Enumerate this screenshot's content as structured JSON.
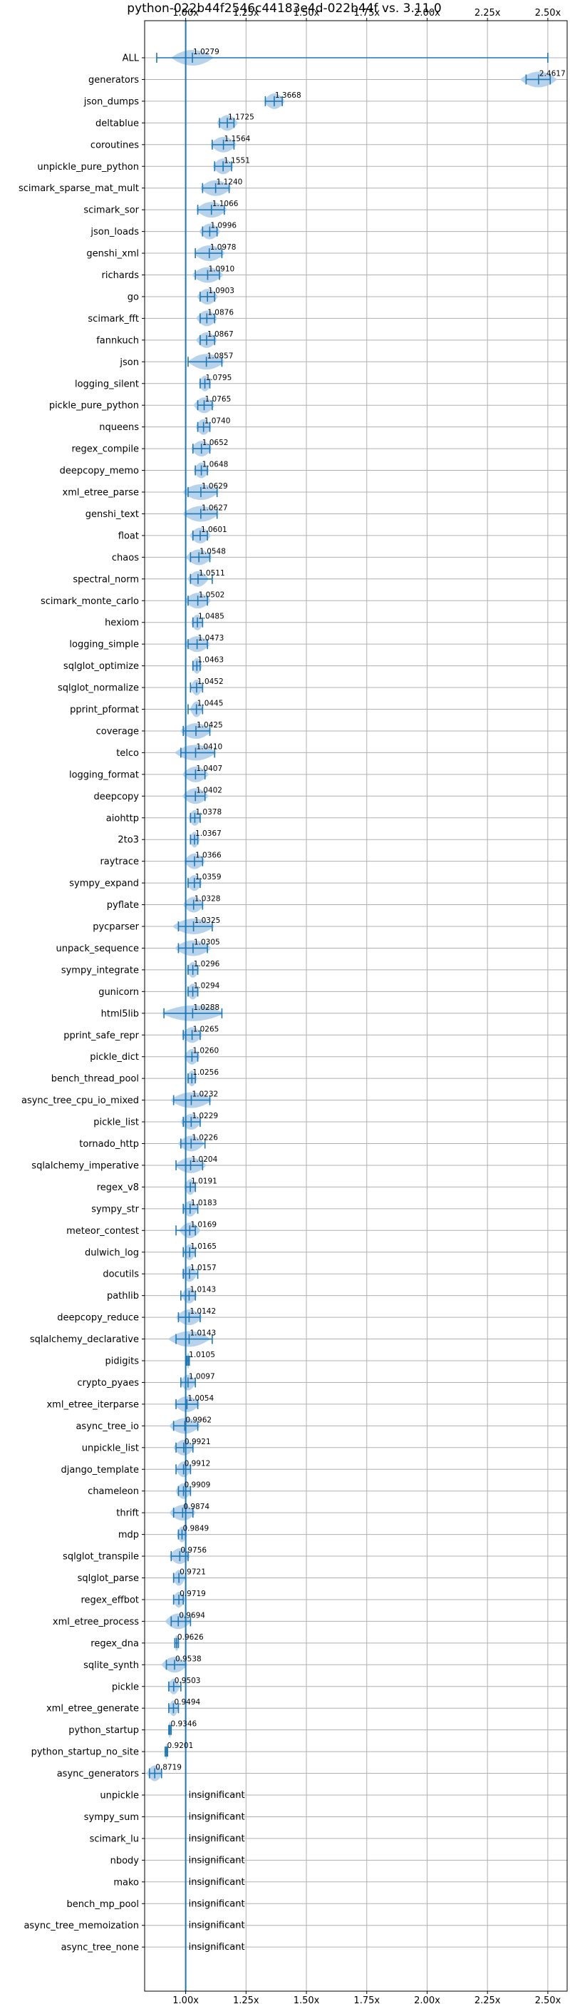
{
  "chart_data": {
    "type": "violin",
    "title": "python-022b44f2546c44183e4d-022b44f vs. 3.11.0",
    "xlim": [
      0.83,
      2.58
    ],
    "xticks": [
      1.0,
      1.25,
      1.5,
      1.75,
      2.0,
      2.25,
      2.5
    ],
    "xtick_labels": [
      "1.00x",
      "1.25x",
      "1.50x",
      "1.75x",
      "2.00x",
      "2.25x",
      "2.50x"
    ],
    "reference_line": 1.0,
    "insignificant_label": "insignificant",
    "benchmarks": [
      {
        "name": "ALL",
        "value": 1.0279,
        "min": 0.88,
        "max": 2.5,
        "spread": 0.04
      },
      {
        "name": "generators",
        "value": 2.4617,
        "min": 2.41,
        "max": 2.51,
        "spread": 0.035
      },
      {
        "name": "json_dumps",
        "value": 1.3668,
        "min": 1.33,
        "max": 1.4,
        "spread": 0.02
      },
      {
        "name": "deltablue",
        "value": 1.1725,
        "min": 1.14,
        "max": 1.2,
        "spread": 0.02
      },
      {
        "name": "coroutines",
        "value": 1.1564,
        "min": 1.11,
        "max": 1.2,
        "spread": 0.025
      },
      {
        "name": "unpickle_pure_python",
        "value": 1.1551,
        "min": 1.12,
        "max": 1.19,
        "spread": 0.02
      },
      {
        "name": "scimark_sparse_mat_mult",
        "value": 1.124,
        "min": 1.07,
        "max": 1.18,
        "spread": 0.03
      },
      {
        "name": "scimark_sor",
        "value": 1.1066,
        "min": 1.05,
        "max": 1.16,
        "spread": 0.03
      },
      {
        "name": "json_loads",
        "value": 1.0996,
        "min": 1.07,
        "max": 1.13,
        "spread": 0.02
      },
      {
        "name": "genshi_xml",
        "value": 1.0978,
        "min": 1.04,
        "max": 1.15,
        "spread": 0.03
      },
      {
        "name": "richards",
        "value": 1.091,
        "min": 1.04,
        "max": 1.14,
        "spread": 0.03
      },
      {
        "name": "go",
        "value": 1.0903,
        "min": 1.06,
        "max": 1.12,
        "spread": 0.02
      },
      {
        "name": "scimark_fft",
        "value": 1.0876,
        "min": 1.06,
        "max": 1.12,
        "spread": 0.02
      },
      {
        "name": "fannkuch",
        "value": 1.0867,
        "min": 1.06,
        "max": 1.12,
        "spread": 0.02
      },
      {
        "name": "json",
        "value": 1.0857,
        "min": 1.01,
        "max": 1.15,
        "spread": 0.035
      },
      {
        "name": "logging_silent",
        "value": 1.0795,
        "min": 1.06,
        "max": 1.1,
        "spread": 0.012
      },
      {
        "name": "pickle_pure_python",
        "value": 1.0765,
        "min": 1.05,
        "max": 1.11,
        "spread": 0.02
      },
      {
        "name": "nqueens",
        "value": 1.074,
        "min": 1.05,
        "max": 1.1,
        "spread": 0.015
      },
      {
        "name": "regex_compile",
        "value": 1.0652,
        "min": 1.03,
        "max": 1.1,
        "spread": 0.02
      },
      {
        "name": "deepcopy_memo",
        "value": 1.0648,
        "min": 1.04,
        "max": 1.09,
        "spread": 0.015
      },
      {
        "name": "xml_etree_parse",
        "value": 1.0629,
        "min": 1.01,
        "max": 1.13,
        "spread": 0.035
      },
      {
        "name": "genshi_text",
        "value": 1.0627,
        "min": 1.0,
        "max": 1.13,
        "spread": 0.035
      },
      {
        "name": "float",
        "value": 1.0601,
        "min": 1.03,
        "max": 1.09,
        "spread": 0.02
      },
      {
        "name": "chaos",
        "value": 1.0548,
        "min": 1.02,
        "max": 1.1,
        "spread": 0.025
      },
      {
        "name": "spectral_norm",
        "value": 1.0511,
        "min": 1.02,
        "max": 1.11,
        "spread": 0.02
      },
      {
        "name": "scimark_monte_carlo",
        "value": 1.0502,
        "min": 1.01,
        "max": 1.09,
        "spread": 0.025
      },
      {
        "name": "hexiom",
        "value": 1.0485,
        "min": 1.03,
        "max": 1.07,
        "spread": 0.012
      },
      {
        "name": "logging_simple",
        "value": 1.0473,
        "min": 1.01,
        "max": 1.09,
        "spread": 0.025
      },
      {
        "name": "sqlglot_optimize",
        "value": 1.0463,
        "min": 1.03,
        "max": 1.06,
        "spread": 0.01
      },
      {
        "name": "sqlglot_normalize",
        "value": 1.0452,
        "min": 1.02,
        "max": 1.07,
        "spread": 0.012
      },
      {
        "name": "pprint_pformat",
        "value": 1.0445,
        "min": 1.01,
        "max": 1.07,
        "spread": 0.012
      },
      {
        "name": "coverage",
        "value": 1.0425,
        "min": 0.99,
        "max": 1.1,
        "spread": 0.03
      },
      {
        "name": "telco",
        "value": 1.041,
        "min": 0.98,
        "max": 1.12,
        "spread": 0.04
      },
      {
        "name": "logging_format",
        "value": 1.0407,
        "min": 1.0,
        "max": 1.08,
        "spread": 0.025
      },
      {
        "name": "deepcopy",
        "value": 1.0402,
        "min": 1.0,
        "max": 1.08,
        "spread": 0.025
      },
      {
        "name": "aiohttp",
        "value": 1.0378,
        "min": 1.02,
        "max": 1.06,
        "spread": 0.012
      },
      {
        "name": "2to3",
        "value": 1.0367,
        "min": 1.02,
        "max": 1.05,
        "spread": 0.01
      },
      {
        "name": "raytrace",
        "value": 1.0366,
        "min": 1.0,
        "max": 1.07,
        "spread": 0.02
      },
      {
        "name": "sympy_expand",
        "value": 1.0359,
        "min": 1.01,
        "max": 1.06,
        "spread": 0.015
      },
      {
        "name": "pyflate",
        "value": 1.0328,
        "min": 1.0,
        "max": 1.07,
        "spread": 0.02
      },
      {
        "name": "pycparser",
        "value": 1.0325,
        "min": 0.97,
        "max": 1.11,
        "spread": 0.04
      },
      {
        "name": "unpack_sequence",
        "value": 1.0305,
        "min": 0.97,
        "max": 1.09,
        "spread": 0.035
      },
      {
        "name": "sympy_integrate",
        "value": 1.0296,
        "min": 1.01,
        "max": 1.05,
        "spread": 0.012
      },
      {
        "name": "gunicorn",
        "value": 1.0294,
        "min": 1.01,
        "max": 1.05,
        "spread": 0.012
      },
      {
        "name": "html5lib",
        "value": 1.0288,
        "min": 0.91,
        "max": 1.15,
        "spread": 0.06
      },
      {
        "name": "pprint_safe_repr",
        "value": 1.0265,
        "min": 0.99,
        "max": 1.06,
        "spread": 0.02
      },
      {
        "name": "pickle_dict",
        "value": 1.026,
        "min": 1.0,
        "max": 1.05,
        "spread": 0.015
      },
      {
        "name": "bench_thread_pool",
        "value": 1.0256,
        "min": 1.01,
        "max": 1.04,
        "spread": 0.01
      },
      {
        "name": "async_tree_cpu_io_mixed",
        "value": 1.0232,
        "min": 0.95,
        "max": 1.1,
        "spread": 0.04
      },
      {
        "name": "pickle_list",
        "value": 1.0229,
        "min": 0.99,
        "max": 1.06,
        "spread": 0.02
      },
      {
        "name": "tornado_http",
        "value": 1.0226,
        "min": 0.98,
        "max": 1.08,
        "spread": 0.025
      },
      {
        "name": "sqlalchemy_imperative",
        "value": 1.0204,
        "min": 0.96,
        "max": 1.07,
        "spread": 0.03
      },
      {
        "name": "regex_v8",
        "value": 1.0191,
        "min": 1.0,
        "max": 1.04,
        "spread": 0.012
      },
      {
        "name": "sympy_str",
        "value": 1.0183,
        "min": 0.99,
        "max": 1.05,
        "spread": 0.015
      },
      {
        "name": "meteor_contest",
        "value": 1.0169,
        "min": 0.96,
        "max": 1.04,
        "spread": 0.02
      },
      {
        "name": "dulwich_log",
        "value": 1.0165,
        "min": 0.99,
        "max": 1.04,
        "spread": 0.012
      },
      {
        "name": "docutils",
        "value": 1.0157,
        "min": 0.99,
        "max": 1.05,
        "spread": 0.015
      },
      {
        "name": "pathlib",
        "value": 1.0143,
        "min": 0.98,
        "max": 1.04,
        "spread": 0.015
      },
      {
        "name": "deepcopy_reduce",
        "value": 1.0142,
        "min": 0.97,
        "max": 1.06,
        "spread": 0.025
      },
      {
        "name": "sqlalchemy_declarative",
        "value": 1.0143,
        "min": 0.96,
        "max": 1.11,
        "spread": 0.04
      },
      {
        "name": "pidigits",
        "value": 1.0105,
        "min": 1.005,
        "max": 1.015,
        "spread": 0.003
      },
      {
        "name": "crypto_pyaes",
        "value": 1.0097,
        "min": 0.98,
        "max": 1.04,
        "spread": 0.015
      },
      {
        "name": "xml_etree_iterparse",
        "value": 1.0054,
        "min": 0.96,
        "max": 1.05,
        "spread": 0.025
      },
      {
        "name": "async_tree_io",
        "value": 0.9962,
        "min": 0.95,
        "max": 1.05,
        "spread": 0.03
      },
      {
        "name": "unpickle_list",
        "value": 0.9921,
        "min": 0.96,
        "max": 1.03,
        "spread": 0.02
      },
      {
        "name": "django_template",
        "value": 0.9912,
        "min": 0.96,
        "max": 1.02,
        "spread": 0.015
      },
      {
        "name": "chameleon",
        "value": 0.9909,
        "min": 0.97,
        "max": 1.02,
        "spread": 0.015
      },
      {
        "name": "thrift",
        "value": 0.9874,
        "min": 0.95,
        "max": 1.03,
        "spread": 0.025
      },
      {
        "name": "mdp",
        "value": 0.9849,
        "min": 0.97,
        "max": 1.0,
        "spread": 0.01
      },
      {
        "name": "sqlglot_transpile",
        "value": 0.9756,
        "min": 0.94,
        "max": 1.01,
        "spread": 0.02
      },
      {
        "name": "sqlglot_parse",
        "value": 0.9721,
        "min": 0.95,
        "max": 1.0,
        "spread": 0.012
      },
      {
        "name": "regex_effbot",
        "value": 0.9719,
        "min": 0.95,
        "max": 0.99,
        "spread": 0.012
      },
      {
        "name": "xml_etree_process",
        "value": 0.9694,
        "min": 0.94,
        "max": 1.02,
        "spread": 0.025
      },
      {
        "name": "regex_dna",
        "value": 0.9626,
        "min": 0.955,
        "max": 0.97,
        "spread": 0.005
      },
      {
        "name": "sqlite_synth",
        "value": 0.9538,
        "min": 0.92,
        "max": 1.0,
        "spread": 0.025
      },
      {
        "name": "pickle",
        "value": 0.9503,
        "min": 0.93,
        "max": 0.98,
        "spread": 0.012
      },
      {
        "name": "xml_etree_generate",
        "value": 0.9494,
        "min": 0.93,
        "max": 0.97,
        "spread": 0.01
      },
      {
        "name": "python_startup",
        "value": 0.9346,
        "min": 0.93,
        "max": 0.94,
        "spread": 0.003
      },
      {
        "name": "python_startup_no_site",
        "value": 0.9201,
        "min": 0.915,
        "max": 0.925,
        "spread": 0.003
      },
      {
        "name": "async_generators",
        "value": 0.8719,
        "min": 0.85,
        "max": 0.9,
        "spread": 0.015
      },
      {
        "name": "unpickle",
        "value": null
      },
      {
        "name": "sympy_sum",
        "value": null
      },
      {
        "name": "scimark_lu",
        "value": null
      },
      {
        "name": "nbody",
        "value": null
      },
      {
        "name": "mako",
        "value": null
      },
      {
        "name": "bench_mp_pool",
        "value": null
      },
      {
        "name": "async_tree_memoization",
        "value": null
      },
      {
        "name": "async_tree_none",
        "value": null
      }
    ]
  }
}
